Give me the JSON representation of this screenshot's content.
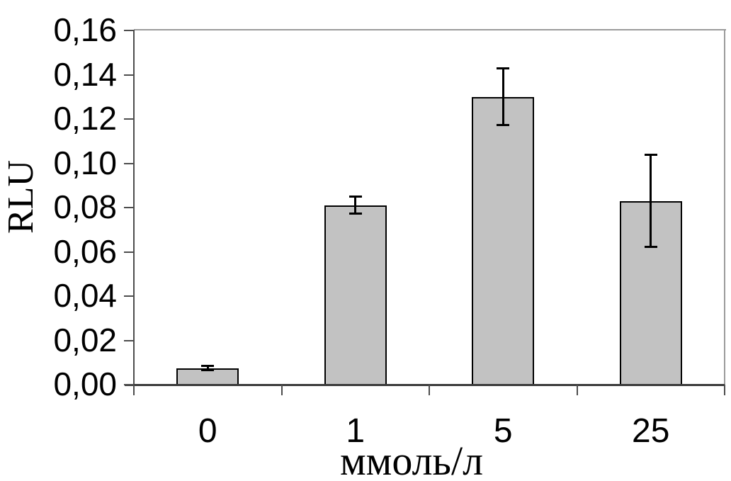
{
  "chart_data": {
    "type": "bar",
    "title": "",
    "xlabel": "ммоль/л",
    "ylabel": "RLU",
    "categories": [
      "0",
      "1",
      "5",
      "25"
    ],
    "values": [
      0.0075,
      0.081,
      0.13,
      0.083
    ],
    "error_bars": [
      0.001,
      0.004,
      0.013,
      0.021
    ],
    "ylim": [
      0,
      0.16
    ],
    "ytick_step": 0.02,
    "ytick_labels": [
      "0,00",
      "0,02",
      "0,04",
      "0,06",
      "0,08",
      "0,10",
      "0,12",
      "0,14",
      "0,16"
    ],
    "decimal_separator": ",",
    "grid": false,
    "legend": "none",
    "colors": {
      "bar_fill": "#c2c2c2",
      "bar_border": "#000000",
      "error_bar": "#000000",
      "axis_line": "#4d4d4d",
      "baseline": "#3a3a3a",
      "frame_border": "#9b9b9b",
      "text": "#000000",
      "background": "#ffffff"
    }
  }
}
